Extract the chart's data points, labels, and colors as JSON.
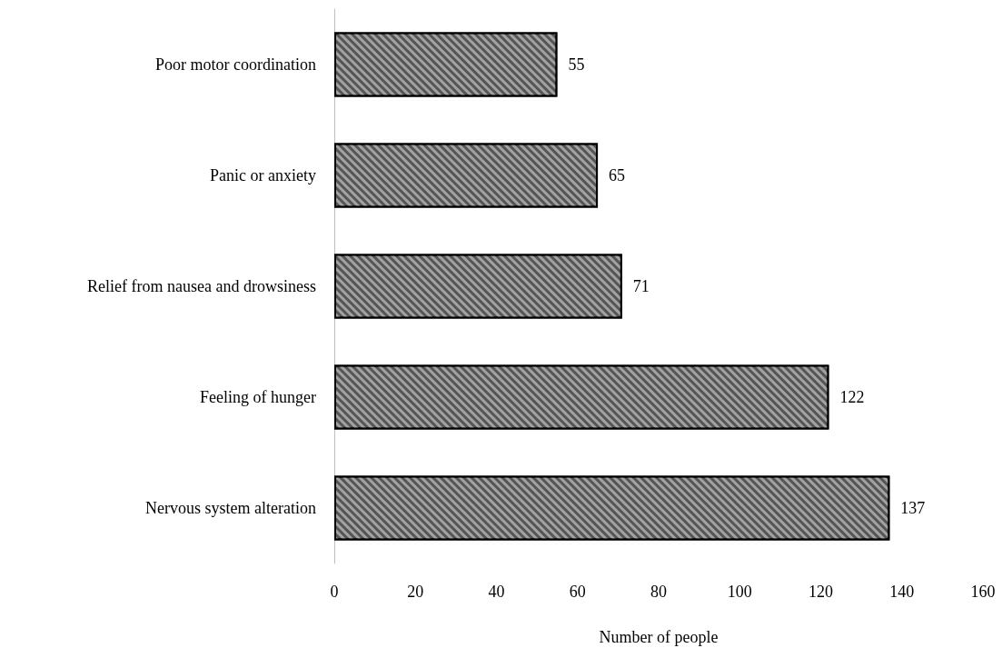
{
  "chart_data": {
    "type": "bar",
    "orientation": "horizontal",
    "xlabel": "Number of people",
    "categories": [
      "Poor motor coordination",
      "Panic or anxiety",
      "Relief from nausea and drowsiness",
      "Feeling of hunger",
      "Nervous system alteration"
    ],
    "values": [
      55,
      65,
      71,
      122,
      137
    ],
    "color": "#555555",
    "xlim": [
      0,
      160
    ],
    "xticks": [
      0,
      20,
      40,
      60,
      80,
      100,
      120,
      140,
      160
    ],
    "grid": false,
    "data_labels": true
  }
}
